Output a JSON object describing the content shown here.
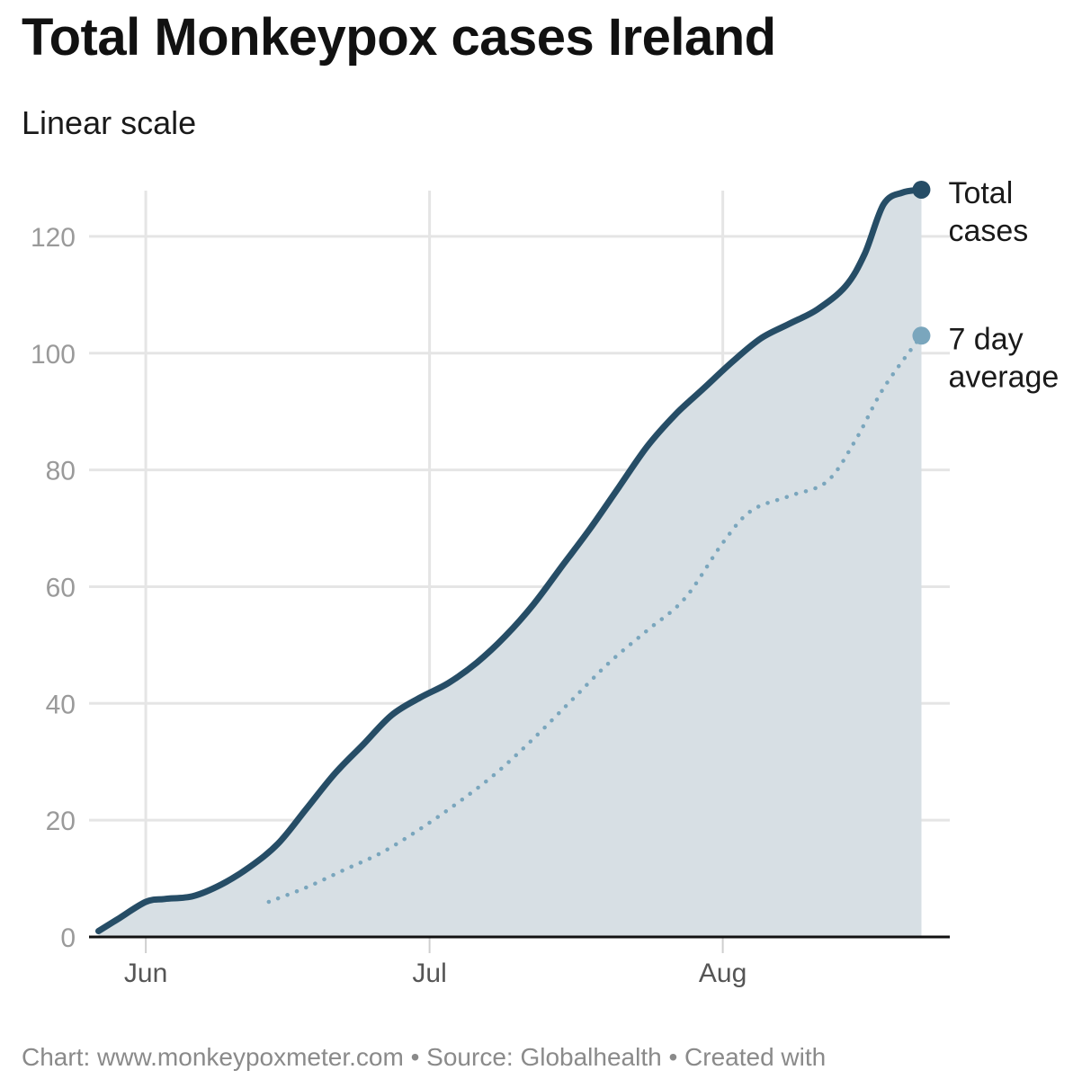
{
  "title": "Total Monkeypox cases Ireland",
  "subtitle": "Linear scale",
  "footer": "Chart: www.monkeypoxmeter.com • Source: Globalhealth • Created with",
  "colors": {
    "total_line": "#264d66",
    "total_fill": "#d7dfe4",
    "average_line": "#7aa6bd",
    "grid": "#e5e5e5",
    "axis": "#111111"
  },
  "chart_data": {
    "type": "line",
    "title": "Total Monkeypox cases Ireland",
    "subtitle": "Linear scale",
    "xlabel": "",
    "ylabel": "",
    "x_ticks": [
      {
        "date": "2022-06-01",
        "label": "Jun"
      },
      {
        "date": "2022-07-01",
        "label": "Jul"
      },
      {
        "date": "2022-08-01",
        "label": "Aug"
      }
    ],
    "xlim": [
      "2022-05-26",
      "2022-08-25"
    ],
    "ylim": [
      0,
      130
    ],
    "y_ticks": [
      0,
      20,
      40,
      60,
      80,
      100,
      120
    ],
    "grid": true,
    "legend": "direct labels at line ends (right)",
    "series": [
      {
        "name": "Total cases",
        "style": "solid",
        "area": true,
        "points": [
          [
            "2022-05-27",
            1
          ],
          [
            "2022-05-29",
            3
          ],
          [
            "2022-06-01",
            6
          ],
          [
            "2022-06-03",
            6.5
          ],
          [
            "2022-06-06",
            7
          ],
          [
            "2022-06-09",
            9
          ],
          [
            "2022-06-12",
            12
          ],
          [
            "2022-06-15",
            16
          ],
          [
            "2022-06-18",
            22
          ],
          [
            "2022-06-21",
            28
          ],
          [
            "2022-06-24",
            33
          ],
          [
            "2022-06-27",
            38
          ],
          [
            "2022-06-30",
            41
          ],
          [
            "2022-07-03",
            43.5
          ],
          [
            "2022-07-06",
            47
          ],
          [
            "2022-07-09",
            51.5
          ],
          [
            "2022-07-12",
            57
          ],
          [
            "2022-07-15",
            63.5
          ],
          [
            "2022-07-18",
            70
          ],
          [
            "2022-07-21",
            77
          ],
          [
            "2022-07-24",
            84
          ],
          [
            "2022-07-27",
            89.5
          ],
          [
            "2022-07-30",
            94
          ],
          [
            "2022-08-02",
            98.5
          ],
          [
            "2022-08-05",
            102.5
          ],
          [
            "2022-08-08",
            105
          ],
          [
            "2022-08-11",
            107.5
          ],
          [
            "2022-08-14",
            111.5
          ],
          [
            "2022-08-16",
            117
          ],
          [
            "2022-08-18",
            125.5
          ],
          [
            "2022-08-20",
            127.5
          ],
          [
            "2022-08-22",
            128
          ]
        ]
      },
      {
        "name": "7 day average",
        "style": "dotted",
        "area": false,
        "points": [
          [
            "2022-06-14",
            6
          ],
          [
            "2022-06-18",
            8.5
          ],
          [
            "2022-06-22",
            11.5
          ],
          [
            "2022-06-26",
            14.5
          ],
          [
            "2022-06-30",
            18.5
          ],
          [
            "2022-07-04",
            23
          ],
          [
            "2022-07-08",
            28
          ],
          [
            "2022-07-12",
            34
          ],
          [
            "2022-07-16",
            40.5
          ],
          [
            "2022-07-20",
            47
          ],
          [
            "2022-07-24",
            52.5
          ],
          [
            "2022-07-28",
            58
          ],
          [
            "2022-08-01",
            67.5
          ],
          [
            "2022-08-04",
            73
          ],
          [
            "2022-08-08",
            75.5
          ],
          [
            "2022-08-12",
            78
          ],
          [
            "2022-08-15",
            85
          ],
          [
            "2022-08-18",
            94
          ],
          [
            "2022-08-22",
            103
          ]
        ]
      }
    ]
  }
}
